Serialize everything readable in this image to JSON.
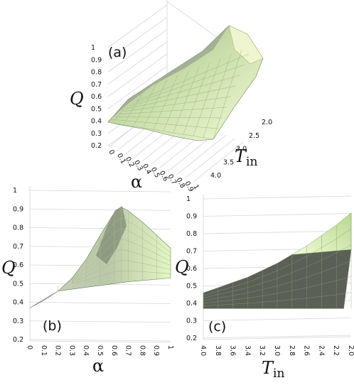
{
  "chart_data": [
    {
      "panel": "(a)",
      "type": "surface",
      "zlabel": "Q",
      "xlabel": "α",
      "ylabel_main": "T",
      "ylabel_sub": "in",
      "z_ticks": [
        "0.2",
        "0.3",
        "0.4",
        "0.5",
        "0.6",
        "0.7",
        "0.8",
        "0.9",
        "1"
      ],
      "x_ticks": [
        "0",
        "0.1",
        "0.2",
        "0.3",
        "0.4",
        "0.5",
        "0.6",
        "0.7",
        "0.8",
        "0.9",
        "1"
      ],
      "y_ticks": [
        "2.0",
        "2.5",
        "3.0",
        "3.5",
        "4.0"
      ],
      "zlim": [
        0.2,
        1
      ],
      "xlim": [
        0,
        1
      ],
      "ylim": [
        2.0,
        4.0
      ]
    },
    {
      "panel": "(b)",
      "type": "surface",
      "zlabel": "Q",
      "xlabel": "α",
      "z_ticks": [
        "0.2",
        "0.3",
        "0.4",
        "0.5",
        "0.6",
        "0.7",
        "0.8",
        "0.9",
        "1"
      ],
      "x_ticks": [
        "0",
        "0.1",
        "0.2",
        "0.3",
        "0.4",
        "0.5",
        "0.6",
        "0.7",
        "0.8",
        "0.9",
        "1"
      ],
      "zlim": [
        0.2,
        1
      ],
      "xlim": [
        0,
        1
      ],
      "profile_alpha": [
        0,
        0.1,
        0.2,
        0.3,
        0.4,
        0.5,
        0.6,
        0.65,
        0.7,
        0.8,
        0.9,
        1
      ],
      "profile_Q": [
        0.37,
        0.41,
        0.46,
        0.53,
        0.63,
        0.76,
        0.88,
        0.91,
        0.89,
        0.83,
        0.76,
        0.69
      ]
    },
    {
      "panel": "(c)",
      "type": "surface",
      "zlabel": "Q",
      "xlabel_main": "T",
      "xlabel_sub": "in",
      "z_ticks": [
        "0.2",
        "0.3",
        "0.4",
        "0.5",
        "0.6",
        "0.7",
        "0.8",
        "0.9",
        "1"
      ],
      "x_ticks": [
        "4.0",
        "3.8",
        "3.6",
        "3.4",
        "3.2",
        "3.0",
        "2.8",
        "2.6",
        "2.4",
        "2.2",
        "2.0"
      ],
      "zlim": [
        0.2,
        1
      ],
      "xlim": [
        4.0,
        2.0
      ],
      "profile_T": [
        4.0,
        3.8,
        3.6,
        3.4,
        3.2,
        3.0,
        2.8,
        2.6,
        2.4,
        2.2,
        2.0
      ],
      "profile_Q": [
        0.46,
        0.49,
        0.52,
        0.55,
        0.59,
        0.63,
        0.68,
        0.73,
        0.79,
        0.85,
        0.92
      ]
    }
  ]
}
